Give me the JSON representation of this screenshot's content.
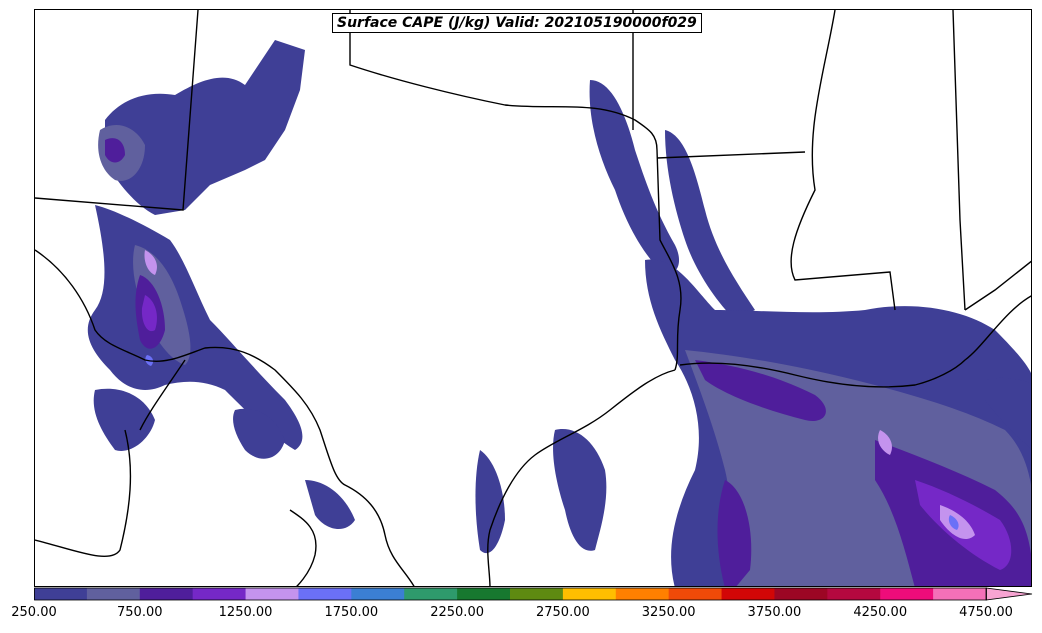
{
  "title": "Surface CAPE (J/kg) Valid: 202105190000f029",
  "colorbar": {
    "colors": [
      "#3f3f96",
      "#60609e",
      "#4f1e9b",
      "#7528c7",
      "#c493ee",
      "#6b70f7",
      "#3b7fd3",
      "#2e9a6c",
      "#17782f",
      "#5e8a11",
      "#ffbe00",
      "#ff8000",
      "#f04a08",
      "#d20606",
      "#9c0624",
      "#b4083f",
      "#ee0c7a",
      "#f470b8"
    ],
    "extend_color": "#f7a4d2",
    "tick_labels": [
      "250.00",
      "750.00",
      "1250.00",
      "1750.00",
      "2250.00",
      "2750.00",
      "3250.00",
      "3750.00",
      "4250.00",
      "4750.00"
    ]
  },
  "shade_colors": {
    "c250": "#3f3f96",
    "c500": "#60609e",
    "c750": "#4f1e9b",
    "c1000": "#7528c7",
    "c1250": "#c493ee",
    "c1500": "#6b70f7"
  }
}
